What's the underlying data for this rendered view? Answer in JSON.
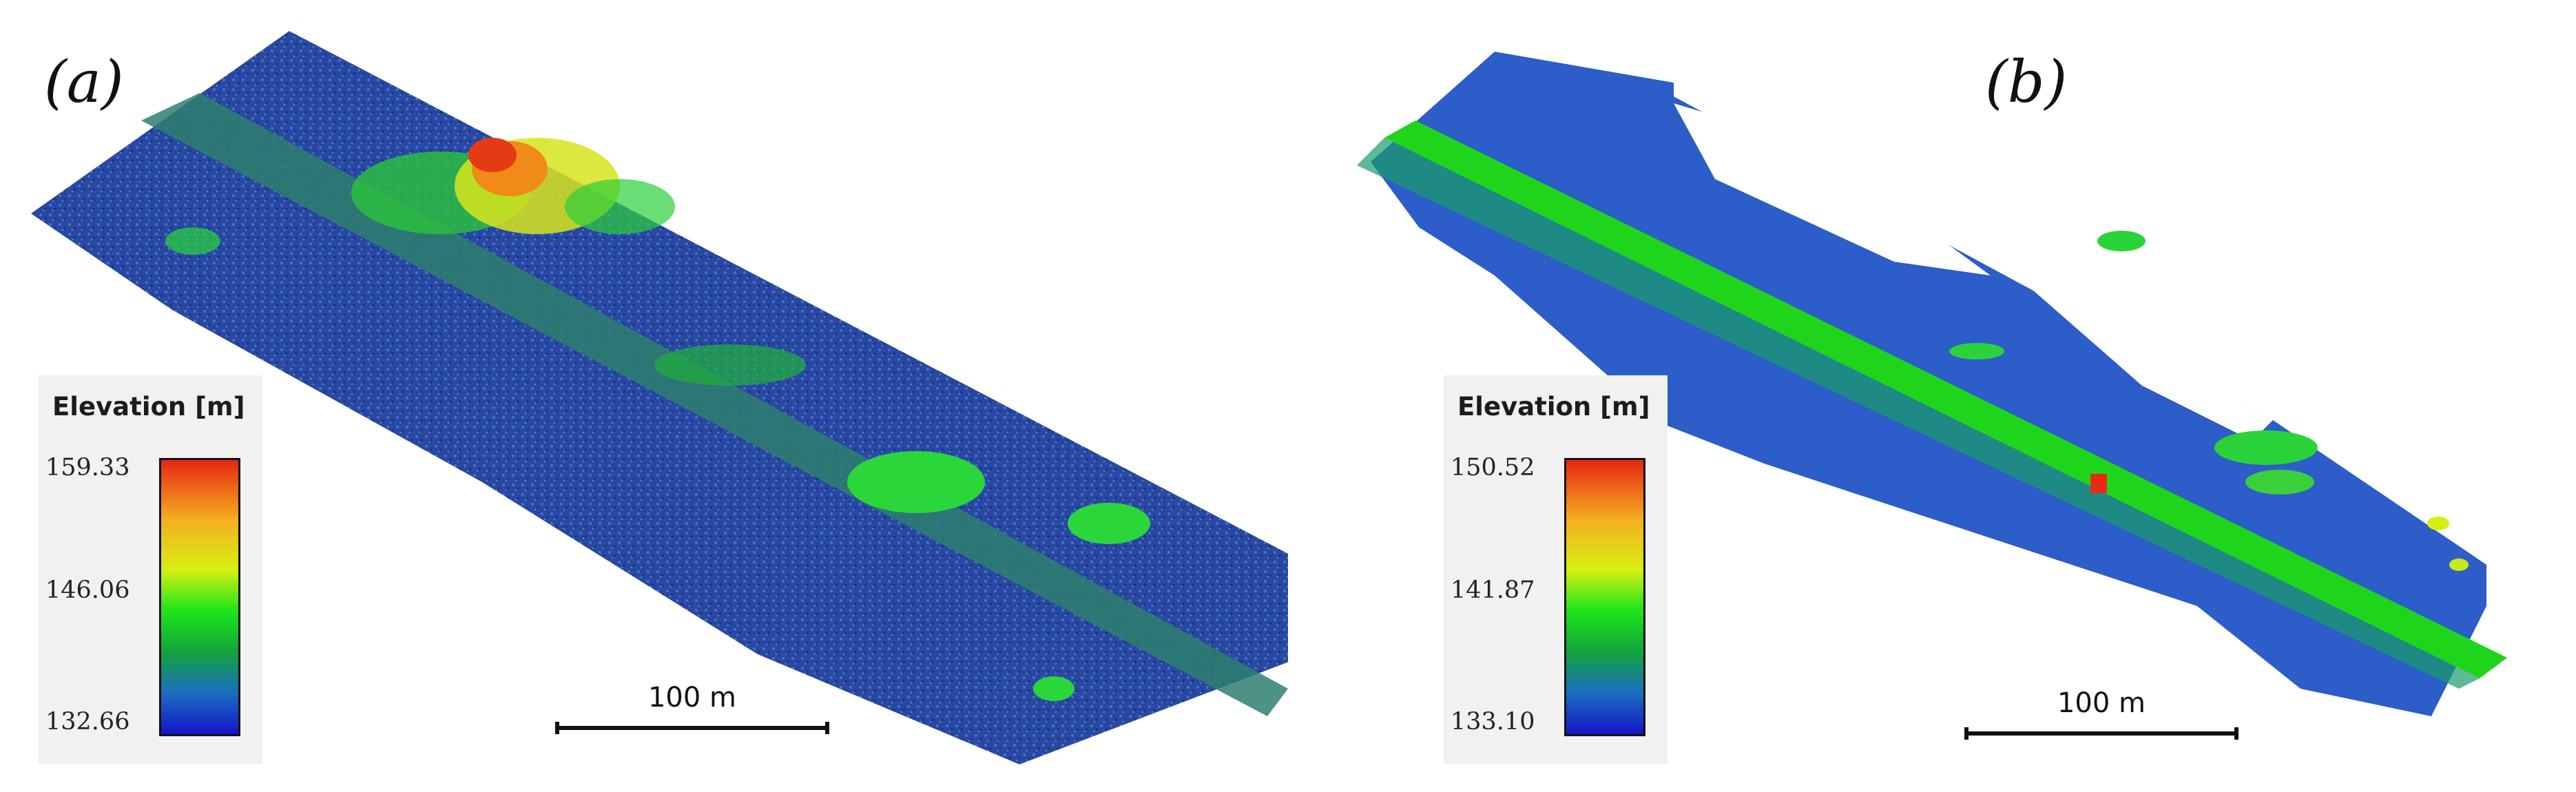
{
  "panels": [
    {
      "label": "(a)",
      "legend": {
        "title": "Elevation [m]",
        "max": "159.33",
        "mid": "146.06",
        "min": "132.66"
      },
      "scale_bar": "100 m",
      "colors": {
        "ground": "#1a3cb0",
        "road": "#2f7f6a",
        "trees": "#1ed22a",
        "canopy_top": "#f06a14"
      }
    },
    {
      "label": "(b)",
      "legend": {
        "title": "Elevation [m]",
        "max": "150.52",
        "mid": "141.87",
        "min": "133.10"
      },
      "scale_bar": "100 m",
      "colors": {
        "ground": "#2a58c8",
        "road": "#18e020",
        "trees": "#2bd33a",
        "hotspot": "#e82a14"
      }
    }
  ]
}
